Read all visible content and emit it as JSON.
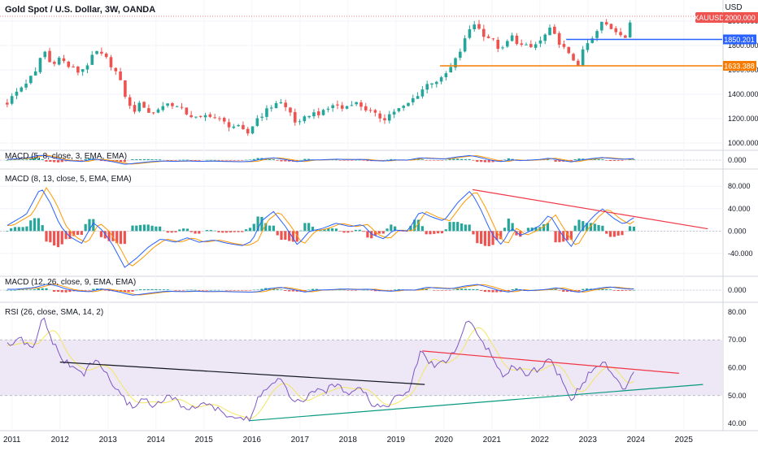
{
  "header": {
    "symbol_title": "Gold Spot / U.S. Dollar, 3W, OANDA",
    "currency": "USD",
    "ticker_badge": "XAUUSD",
    "ticker_price": "2000.000"
  },
  "colors": {
    "up": "#26a69a",
    "down": "#ef5350",
    "blue_line": "#2962ff",
    "orange_line": "#f57c00",
    "macd_line": "#2962ff",
    "signal_line": "#ff9800",
    "rsi_line": "#7e57c2",
    "rsi_ma": "#f5e663",
    "trend_red": "#f23645",
    "trend_black": "#131722",
    "trend_teal": "#089981",
    "rsi_band": "#ede7f6"
  },
  "chart_data": [
    {
      "type": "candlestick",
      "panel": "price",
      "title": "Gold Spot / U.S. Dollar, 3W, OANDA",
      "y_ticks": [
        1000,
        1200,
        1400,
        1600,
        1800,
        2000
      ],
      "y_tick_labels": [
        "1000.000",
        "1200.000",
        "1400.000",
        "1600.000",
        "1800.000",
        "2000.000"
      ],
      "ylim": [
        960,
        2120
      ],
      "x_ticks": [
        "2011",
        "2012",
        "2013",
        "2014",
        "2015",
        "2016",
        "2017",
        "2018",
        "2019",
        "2020",
        "2021",
        "2022",
        "2023",
        "2024",
        "2025"
      ],
      "close_path": [
        [
          2010.9,
          1330
        ],
        [
          2011.1,
          1420
        ],
        [
          2011.3,
          1500
        ],
        [
          2011.5,
          1580
        ],
        [
          2011.65,
          1780
        ],
        [
          2011.8,
          1650
        ],
        [
          2012.0,
          1700
        ],
        [
          2012.2,
          1620
        ],
        [
          2012.4,
          1580
        ],
        [
          2012.6,
          1660
        ],
        [
          2012.75,
          1750
        ],
        [
          2013.0,
          1680
        ],
        [
          2013.2,
          1560
        ],
        [
          2013.35,
          1400
        ],
        [
          2013.5,
          1250
        ],
        [
          2013.7,
          1330
        ],
        [
          2013.9,
          1230
        ],
        [
          2014.1,
          1300
        ],
        [
          2014.3,
          1330
        ],
        [
          2014.5,
          1280
        ],
        [
          2014.7,
          1230
        ],
        [
          2014.9,
          1190
        ],
        [
          2015.1,
          1240
        ],
        [
          2015.3,
          1190
        ],
        [
          2015.5,
          1150
        ],
        [
          2015.7,
          1130
        ],
        [
          2015.9,
          1070
        ],
        [
          2016.1,
          1200
        ],
        [
          2016.35,
          1280
        ],
        [
          2016.55,
          1350
        ],
        [
          2016.8,
          1250
        ],
        [
          2016.95,
          1140
        ],
        [
          2017.2,
          1240
        ],
        [
          2017.5,
          1250
        ],
        [
          2017.7,
          1320
        ],
        [
          2017.9,
          1280
        ],
        [
          2018.1,
          1340
        ],
        [
          2018.3,
          1300
        ],
        [
          2018.55,
          1230
        ],
        [
          2018.75,
          1200
        ],
        [
          2018.95,
          1260
        ],
        [
          2019.2,
          1300
        ],
        [
          2019.45,
          1400
        ],
        [
          2019.7,
          1500
        ],
        [
          2019.95,
          1520
        ],
        [
          2020.15,
          1620
        ],
        [
          2020.3,
          1720
        ],
        [
          2020.5,
          1900
        ],
        [
          2020.6,
          2000
        ],
        [
          2020.8,
          1900
        ],
        [
          2021.0,
          1850
        ],
        [
          2021.2,
          1750
        ],
        [
          2021.4,
          1880
        ],
        [
          2021.6,
          1800
        ],
        [
          2021.8,
          1780
        ],
        [
          2022.0,
          1830
        ],
        [
          2022.2,
          1930
        ],
        [
          2022.4,
          1830
        ],
        [
          2022.6,
          1720
        ],
        [
          2022.8,
          1650
        ],
        [
          2022.95,
          1800
        ],
        [
          2023.1,
          1850
        ],
        [
          2023.3,
          1990
        ],
        [
          2023.5,
          1940
        ],
        [
          2023.7,
          1900
        ],
        [
          2023.8,
          1860
        ],
        [
          2023.9,
          2000
        ],
        [
          2023.95,
          2045
        ]
      ],
      "annotations": [
        {
          "label": "1850.201",
          "value": 1850.201,
          "color": "#2962ff",
          "x_start": 2022.55
        },
        {
          "label": "1633.388",
          "value": 1633.388,
          "color": "#f57c00",
          "x_start": 2019.92
        }
      ]
    },
    {
      "type": "macd",
      "panel": "macd_5_8_3",
      "label": "MACD (5, 8, close, 3, EMA, EMA)",
      "y_tick_labels": [
        "0.000"
      ],
      "note": "compressed panel, histogram around zero"
    },
    {
      "type": "macd",
      "panel": "macd_8_13_5",
      "label": "MACD (8, 13, close, 5, EMA, EMA)",
      "y_ticks": [
        80,
        40,
        0,
        -40
      ],
      "y_tick_labels": [
        "80.000",
        "40.000",
        "0.000",
        "-40.000"
      ],
      "ylim": [
        -75,
        105
      ],
      "macd_path": [
        [
          2010.9,
          10
        ],
        [
          2011.3,
          30
        ],
        [
          2011.6,
          78
        ],
        [
          2011.8,
          50
        ],
        [
          2012.0,
          10
        ],
        [
          2012.2,
          -10
        ],
        [
          2012.45,
          -22
        ],
        [
          2012.7,
          15
        ],
        [
          2012.9,
          0
        ],
        [
          2013.1,
          -25
        ],
        [
          2013.35,
          -65
        ],
        [
          2013.6,
          -48
        ],
        [
          2013.85,
          -28
        ],
        [
          2014.1,
          -14
        ],
        [
          2014.4,
          -20
        ],
        [
          2014.65,
          -12
        ],
        [
          2014.9,
          -20
        ],
        [
          2015.2,
          -16
        ],
        [
          2015.5,
          -22
        ],
        [
          2015.8,
          -26
        ],
        [
          2016.0,
          -18
        ],
        [
          2016.2,
          18
        ],
        [
          2016.45,
          35
        ],
        [
          2016.7,
          8
        ],
        [
          2016.95,
          -25
        ],
        [
          2017.2,
          0
        ],
        [
          2017.45,
          4
        ],
        [
          2017.75,
          14
        ],
        [
          2018.05,
          8
        ],
        [
          2018.3,
          12
        ],
        [
          2018.5,
          -6
        ],
        [
          2018.75,
          -14
        ],
        [
          2018.95,
          2
        ],
        [
          2019.25,
          0
        ],
        [
          2019.5,
          35
        ],
        [
          2019.75,
          25
        ],
        [
          2020.0,
          18
        ],
        [
          2020.3,
          52
        ],
        [
          2020.55,
          72
        ],
        [
          2020.75,
          42
        ],
        [
          2021.0,
          -5
        ],
        [
          2021.2,
          -25
        ],
        [
          2021.4,
          6
        ],
        [
          2021.6,
          -8
        ],
        [
          2021.8,
          0
        ],
        [
          2022.0,
          10
        ],
        [
          2022.2,
          30
        ],
        [
          2022.45,
          -5
        ],
        [
          2022.65,
          -28
        ],
        [
          2022.85,
          0
        ],
        [
          2023.1,
          25
        ],
        [
          2023.3,
          40
        ],
        [
          2023.55,
          22
        ],
        [
          2023.75,
          12
        ],
        [
          2023.95,
          24
        ]
      ],
      "trendline": {
        "color": "#f23645",
        "from": [
          2020.6,
          74
        ],
        "to": [
          2025.5,
          4
        ]
      }
    },
    {
      "type": "macd",
      "panel": "macd_12_26_9",
      "label": "MACD (12, 26, close, 9, EMA, EMA)",
      "y_tick_labels": [
        "0.000"
      ],
      "note": "compressed panel, histogram around zero"
    },
    {
      "type": "line",
      "panel": "rsi",
      "label": "RSI (26, close, SMA, 14, 2)",
      "y_ticks": [
        40,
        50,
        60,
        70,
        80
      ],
      "y_tick_labels": [
        "40.00",
        "50.00",
        "60.00",
        "70.00",
        "80.00"
      ],
      "ylim": [
        38,
        82
      ],
      "band": [
        50,
        70
      ],
      "rsi_path": [
        [
          2010.9,
          68
        ],
        [
          2011.2,
          70
        ],
        [
          2011.45,
          66
        ],
        [
          2011.65,
          79
        ],
        [
          2011.8,
          71
        ],
        [
          2012.0,
          64
        ],
        [
          2012.25,
          60
        ],
        [
          2012.5,
          58
        ],
        [
          2012.75,
          63
        ],
        [
          2013.0,
          57
        ],
        [
          2013.25,
          50
        ],
        [
          2013.5,
          46
        ],
        [
          2013.75,
          49
        ],
        [
          2014.0,
          46
        ],
        [
          2014.25,
          50
        ],
        [
          2014.5,
          47
        ],
        [
          2014.75,
          45
        ],
        [
          2015.0,
          48
        ],
        [
          2015.25,
          45
        ],
        [
          2015.5,
          43
        ],
        [
          2015.75,
          42
        ],
        [
          2015.95,
          41
        ],
        [
          2016.15,
          50
        ],
        [
          2016.4,
          54
        ],
        [
          2016.6,
          56
        ],
        [
          2016.85,
          47
        ],
        [
          2017.0,
          48
        ],
        [
          2017.3,
          51
        ],
        [
          2017.55,
          52
        ],
        [
          2017.8,
          54
        ],
        [
          2018.0,
          51
        ],
        [
          2018.25,
          54
        ],
        [
          2018.5,
          47
        ],
        [
          2018.75,
          46
        ],
        [
          2019.0,
          49
        ],
        [
          2019.3,
          52
        ],
        [
          2019.5,
          66
        ],
        [
          2019.75,
          61
        ],
        [
          2020.0,
          62
        ],
        [
          2020.25,
          66
        ],
        [
          2020.5,
          78
        ],
        [
          2020.7,
          72
        ],
        [
          2020.9,
          67
        ],
        [
          2021.2,
          57
        ],
        [
          2021.45,
          61
        ],
        [
          2021.7,
          58
        ],
        [
          2022.0,
          60
        ],
        [
          2022.2,
          63
        ],
        [
          2022.45,
          56
        ],
        [
          2022.65,
          48
        ],
        [
          2022.85,
          54
        ],
        [
          2023.15,
          60
        ],
        [
          2023.35,
          62
        ],
        [
          2023.55,
          56
        ],
        [
          2023.75,
          52
        ],
        [
          2023.95,
          59
        ]
      ],
      "trendlines": [
        {
          "color": "#131722",
          "from": [
            2012.0,
            62
          ],
          "to": [
            2019.6,
            54
          ]
        },
        {
          "color": "#f23645",
          "from": [
            2019.55,
            66
          ],
          "to": [
            2024.9,
            58
          ]
        },
        {
          "color": "#089981",
          "from": [
            2015.95,
            41
          ],
          "to": [
            2025.4,
            54
          ]
        }
      ]
    }
  ]
}
